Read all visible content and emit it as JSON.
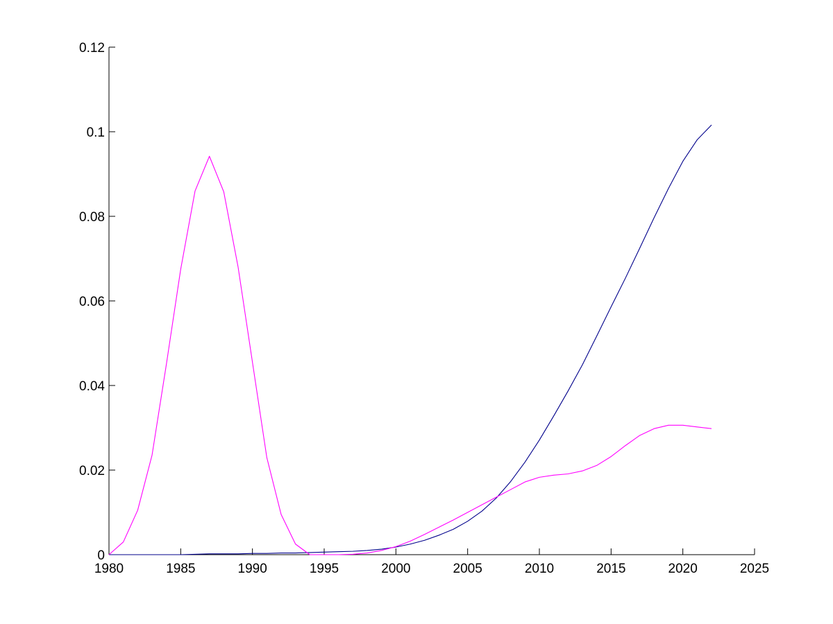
{
  "chart_data": {
    "type": "line",
    "title": "",
    "xlabel": "",
    "ylabel": "",
    "xlim": [
      1980,
      2025
    ],
    "ylim": [
      0,
      0.12
    ],
    "xticks": [
      1980,
      1985,
      1990,
      1995,
      2000,
      2005,
      2010,
      2015,
      2020,
      2025
    ],
    "xtick_labels": [
      "1980",
      "1985",
      "1990",
      "1995",
      "2000",
      "2005",
      "2010",
      "2015",
      "2020",
      "2025"
    ],
    "yticks": [
      0,
      0.02,
      0.04,
      0.06,
      0.08,
      0.1,
      0.12
    ],
    "ytick_labels": [
      "0",
      "0.02",
      "0.04",
      "0.06",
      "0.08",
      "0.1",
      "0.12"
    ],
    "grid": false,
    "legend": "none",
    "x": [
      1980,
      1981,
      1982,
      1983,
      1984,
      1985,
      1986,
      1987,
      1988,
      1989,
      1990,
      1991,
      1992,
      1993,
      1994,
      1995,
      1996,
      1997,
      1998,
      1999,
      2000,
      2001,
      2002,
      2003,
      2004,
      2005,
      2006,
      2007,
      2008,
      2009,
      2010,
      2011,
      2012,
      2013,
      2014,
      2015,
      2016,
      2017,
      2018,
      2019,
      2020,
      2021,
      2022
    ],
    "series": [
      {
        "color": "#00008b",
        "values": [
          0,
          0,
          0,
          0,
          0,
          0,
          0.0001,
          0.0002,
          0.0002,
          0.0002,
          0.0003,
          0.0003,
          0.0004,
          0.0004,
          0.0005,
          0.0006,
          0.0007,
          0.0008,
          0.001,
          0.0013,
          0.0018,
          0.0025,
          0.0034,
          0.0046,
          0.006,
          0.0079,
          0.0103,
          0.0134,
          0.0173,
          0.0219,
          0.0271,
          0.0328,
          0.0387,
          0.0449,
          0.0517,
          0.0586,
          0.0654,
          0.0725,
          0.0797,
          0.0866,
          0.093,
          0.0981,
          0.1016
        ]
      },
      {
        "color": "#ff00ff",
        "values": [
          0,
          0.003,
          0.0105,
          0.0235,
          0.045,
          0.0675,
          0.086,
          0.0942,
          0.0858,
          0.068,
          0.0455,
          0.023,
          0.0095,
          0.0025,
          0,
          0,
          0,
          0.0001,
          0.0004,
          0.001,
          0.0019,
          0.0032,
          0.0048,
          0.0065,
          0.0082,
          0.01,
          0.0118,
          0.0136,
          0.0154,
          0.0172,
          0.0183,
          0.0188,
          0.0191,
          0.0198,
          0.0211,
          0.0232,
          0.0258,
          0.0282,
          0.0298,
          0.0306,
          0.0306,
          0.0302,
          0.0298
        ]
      }
    ]
  }
}
